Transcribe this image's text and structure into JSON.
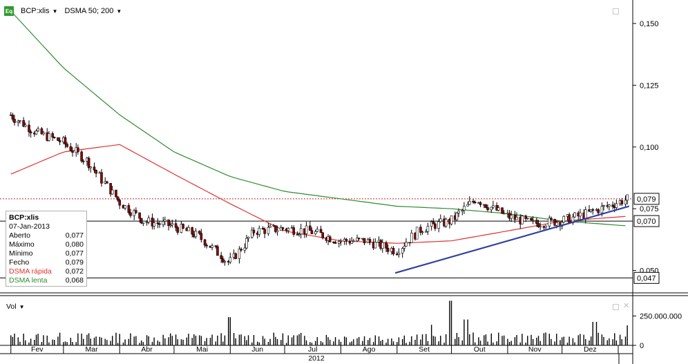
{
  "toolbar": {
    "symbol_label": "BCP:xlis",
    "indicator_label": "DSMA 50; 200",
    "eq_icon_text": "Eq"
  },
  "colors": {
    "candle_up": "#ffffff",
    "candle_down": "#8b0000",
    "fast_ma": "#e03030",
    "slow_ma": "#2e8b2e",
    "trendline": "#3040a0",
    "grid_text": "#000000"
  },
  "info": {
    "symbol": "BCP:xlis",
    "date": "07-Jan-2013",
    "rows": [
      {
        "label": "Aberto",
        "value": "0,077",
        "color": "#000000"
      },
      {
        "label": "Máximo",
        "value": "0,080",
        "color": "#000000"
      },
      {
        "label": "Mínimo",
        "value": "0,077",
        "color": "#000000"
      },
      {
        "label": "Fecho",
        "value": "0,079",
        "color": "#000000"
      },
      {
        "label": "DSMA rápida",
        "value": "0,072",
        "color": "#e03030"
      },
      {
        "label": "DSMA lenta",
        "value": "0,068",
        "color": "#2e8b2e"
      }
    ]
  },
  "volume_panel": {
    "label": "Vol",
    "tick_labels": [
      "250.000.000",
      "0"
    ]
  },
  "year_label": "2012",
  "chart_data": {
    "type": "candlestick",
    "title": "BCP:xlis",
    "y_axis_ticks": [
      "0,150",
      "0,125",
      "0,100",
      "0,075",
      "0,050"
    ],
    "y_tick_values": [
      0.15,
      0.125,
      0.1,
      0.075,
      0.05
    ],
    "ylim": [
      0.0415,
      0.1595
    ],
    "price_markers": [
      {
        "label": "0,079",
        "value": 0.079,
        "style": "dotted-red"
      },
      {
        "label": "0,070",
        "value": 0.07,
        "style": "solid"
      },
      {
        "label": "0,047",
        "value": 0.047,
        "style": "solid"
      }
    ],
    "x_month_labels": [
      "Fev",
      "Mar",
      "Abr",
      "Mai",
      "Jun",
      "Jul",
      "Ago",
      "Set",
      "Out",
      "Nov",
      "Dez"
    ],
    "close_series": {
      "x": [
        "2012-02-01",
        "2012-02-15",
        "2012-03-01",
        "2012-03-15",
        "2012-04-01",
        "2012-04-15",
        "2012-05-01",
        "2012-05-15",
        "2012-06-01",
        "2012-06-15",
        "2012-07-01",
        "2012-07-15",
        "2012-08-01",
        "2012-08-15",
        "2012-09-01",
        "2012-09-15",
        "2012-10-01",
        "2012-10-15",
        "2012-11-01",
        "2012-11-15",
        "2012-12-01",
        "2012-12-15",
        "2013-01-07"
      ],
      "values": [
        0.113,
        0.106,
        0.102,
        0.094,
        0.078,
        0.07,
        0.068,
        0.064,
        0.053,
        0.066,
        0.067,
        0.066,
        0.062,
        0.062,
        0.058,
        0.067,
        0.07,
        0.079,
        0.072,
        0.069,
        0.07,
        0.073,
        0.079
      ]
    },
    "series": [
      {
        "name": "DSMA rápida",
        "x": [
          "2012-02-01",
          "2012-03-01",
          "2012-04-01",
          "2012-05-01",
          "2012-06-01",
          "2012-07-01",
          "2012-08-01",
          "2012-09-01",
          "2012-10-01",
          "2012-11-01",
          "2012-12-01",
          "2013-01-07"
        ],
        "values": [
          0.089,
          0.098,
          0.101,
          0.089,
          0.077,
          0.066,
          0.062,
          0.061,
          0.062,
          0.066,
          0.07,
          0.072
        ]
      },
      {
        "name": "DSMA lenta",
        "x": [
          "2012-02-01",
          "2012-03-01",
          "2012-04-01",
          "2012-05-01",
          "2012-06-01",
          "2012-07-01",
          "2012-08-01",
          "2012-09-01",
          "2012-10-01",
          "2012-11-01",
          "2012-12-01",
          "2013-01-07"
        ],
        "values": [
          0.155,
          0.132,
          0.113,
          0.098,
          0.088,
          0.082,
          0.079,
          0.076,
          0.075,
          0.073,
          0.07,
          0.068
        ]
      }
    ],
    "trendline": {
      "x": [
        "2012-08-31",
        "2013-01-07"
      ],
      "values": [
        0.049,
        0.076
      ]
    },
    "volume_ylim": [
      0,
      400000000
    ],
    "volume_spikes": [
      {
        "x": "2012-06-01",
        "value": 240000000
      },
      {
        "x": "2012-09-20",
        "value": 175000000
      },
      {
        "x": "2012-10-01",
        "value": 380000000
      },
      {
        "x": "2012-10-10",
        "value": 220000000
      },
      {
        "x": "2012-12-20",
        "value": 200000000
      },
      {
        "x": "2013-01-07",
        "value": 170000000
      }
    ]
  }
}
